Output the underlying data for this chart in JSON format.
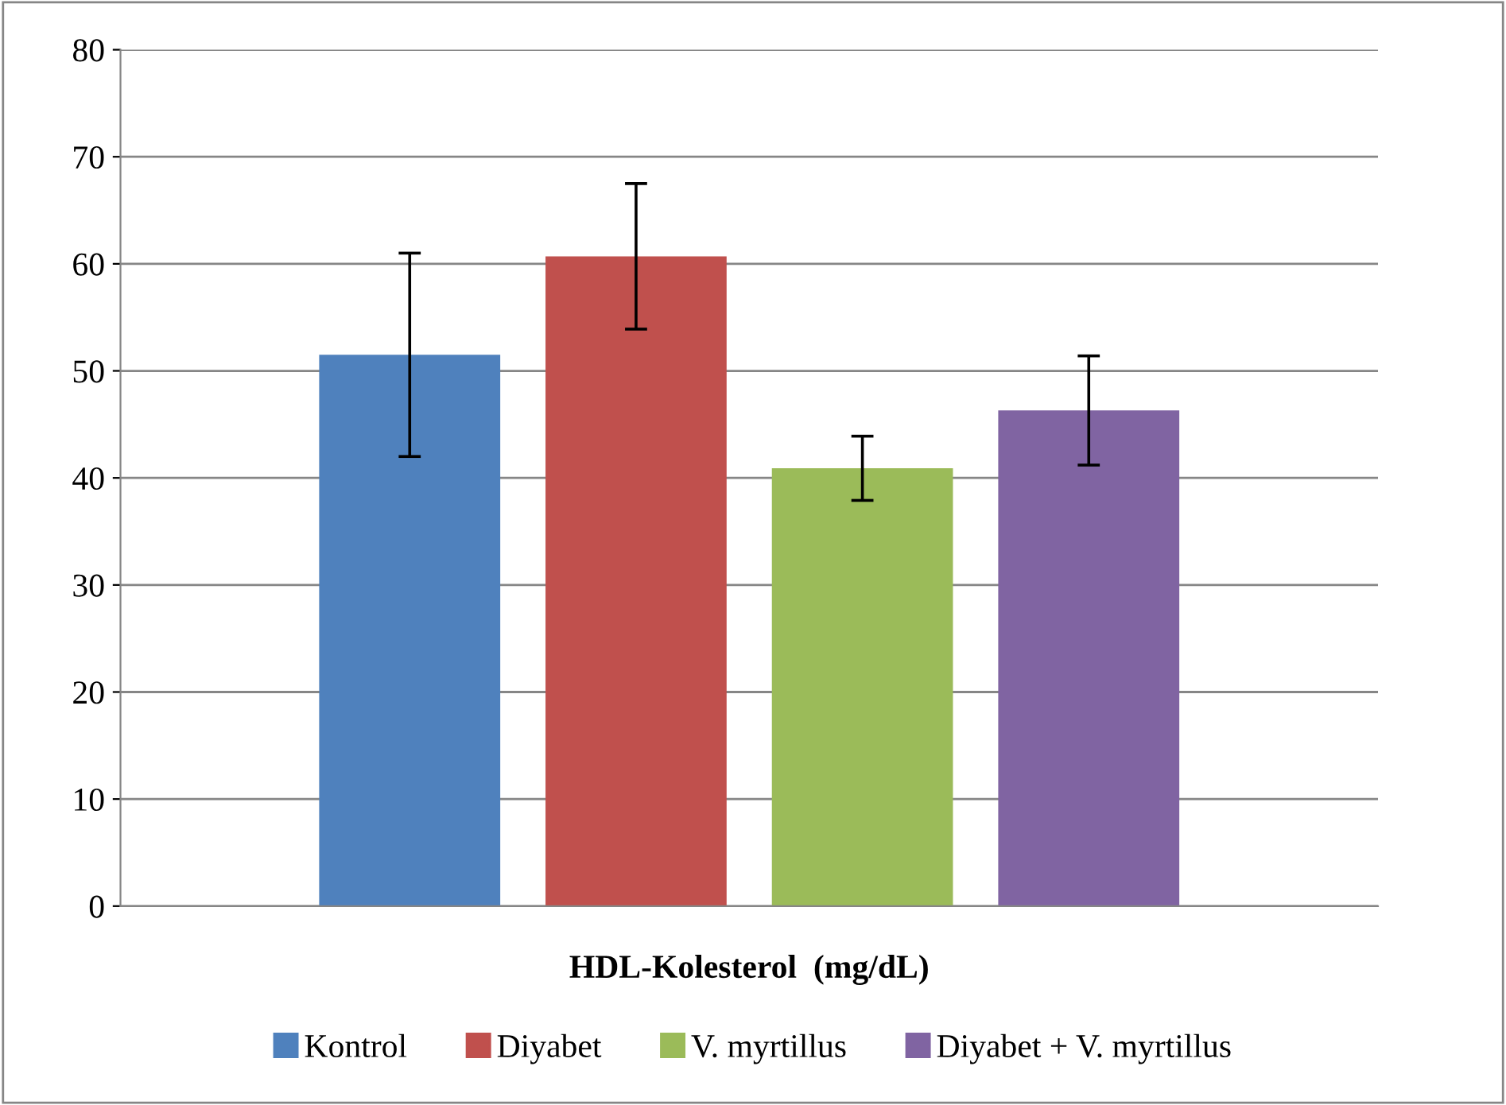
{
  "chart_data": {
    "type": "bar",
    "categories": [
      "HDL-Kolesterol  (mg/dL)"
    ],
    "series": [
      {
        "name": "Kontrol",
        "color": "#4f81bd",
        "values": [
          51.5
        ],
        "errors": [
          9.5
        ]
      },
      {
        "name": "Diyabet",
        "color": "#c0504d",
        "values": [
          60.7
        ],
        "errors": [
          6.8
        ]
      },
      {
        "name": "V. myrtillus",
        "color": "#9bbb59",
        "values": [
          40.9
        ],
        "errors": [
          3.0
        ]
      },
      {
        "name": "Diyabet + V. myrtillus",
        "color": "#8064a2",
        "values": [
          46.3
        ],
        "errors": [
          5.1
        ]
      }
    ],
    "ylim": [
      0,
      80
    ],
    "yticks": [
      0,
      10,
      20,
      30,
      40,
      50,
      60,
      70,
      80
    ],
    "grid": "y",
    "legend": "bottom"
  }
}
